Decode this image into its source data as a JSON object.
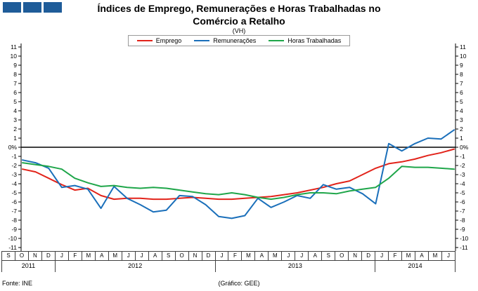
{
  "header": {
    "title_line1": "Índices de Emprego, Remunerações e Horas Trabalhadas no",
    "title_line2": "Comércio a Retalho",
    "subtitle": "(VH)"
  },
  "logo_color": "#1f5c99",
  "footer": {
    "source": "Fonte: INE",
    "credit": "(Gráfico: GEE)"
  },
  "chart_data": {
    "type": "line",
    "title": "Índices de Emprego, Remunerações e Horas Trabalhadas no Comércio a Retalho",
    "subtitle": "(VH)",
    "ylim": [
      -11,
      11
    ],
    "y_tick_step": 1,
    "zero_label": "0%",
    "y_ticks": [
      11,
      10,
      9,
      8,
      7,
      6,
      5,
      4,
      3,
      2,
      1,
      "0%",
      -1,
      -2,
      -3,
      -4,
      -5,
      -6,
      -7,
      -8,
      -9,
      -10,
      -11
    ],
    "grid": false,
    "legend_position": "top-center",
    "x_labels": [
      "S",
      "O",
      "N",
      "D",
      "J",
      "F",
      "M",
      "A",
      "M",
      "J",
      "J",
      "A",
      "S",
      "O",
      "N",
      "D",
      "J",
      "F",
      "M",
      "A",
      "M",
      "J",
      "J",
      "A",
      "S",
      "O",
      "N",
      "D",
      "J",
      "F",
      "M",
      "A",
      "M",
      "J"
    ],
    "year_groups": [
      {
        "year": "2011",
        "count": 4
      },
      {
        "year": "2012",
        "count": 12
      },
      {
        "year": "2013",
        "count": 12
      },
      {
        "year": "2014",
        "count": 6
      }
    ],
    "series": [
      {
        "name": "Emprego",
        "color": "#e2231a",
        "values": [
          -2.4,
          -2.7,
          -3.4,
          -4.1,
          -4.7,
          -4.5,
          -5.3,
          -5.7,
          -5.6,
          -5.6,
          -5.7,
          -5.7,
          -5.6,
          -5.5,
          -5.6,
          -5.7,
          -5.7,
          -5.6,
          -5.5,
          -5.4,
          -5.2,
          -5.0,
          -4.7,
          -4.4,
          -4.0,
          -3.7,
          -3.0,
          -2.3,
          -1.8,
          -1.6,
          -1.3,
          -0.9,
          -0.6,
          -0.2
        ]
      },
      {
        "name": "Remunerações",
        "color": "#1a6fba",
        "values": [
          -1.4,
          -1.7,
          -2.3,
          -4.4,
          -4.2,
          -4.6,
          -6.7,
          -4.3,
          -5.6,
          -6.3,
          -7.1,
          -6.9,
          -5.3,
          -5.4,
          -6.3,
          -7.6,
          -7.8,
          -7.5,
          -5.6,
          -6.6,
          -6.0,
          -5.3,
          -5.6,
          -4.1,
          -4.6,
          -4.4,
          -5.1,
          -6.2,
          0.4,
          -0.4,
          0.4,
          1.0,
          0.9,
          1.9
        ]
      },
      {
        "name": "Horas Trabalhadas",
        "color": "#1fa64a",
        "values": [
          -1.7,
          -1.9,
          -2.1,
          -2.4,
          -3.4,
          -3.9,
          -4.3,
          -4.2,
          -4.4,
          -4.5,
          -4.4,
          -4.5,
          -4.7,
          -4.9,
          -5.1,
          -5.2,
          -5.0,
          -5.2,
          -5.5,
          -5.7,
          -5.5,
          -5.2,
          -5.0,
          -5.0,
          -5.1,
          -4.8,
          -4.6,
          -4.4,
          -3.4,
          -2.1,
          -2.2,
          -2.2,
          -2.3,
          -2.4
        ]
      }
    ]
  }
}
